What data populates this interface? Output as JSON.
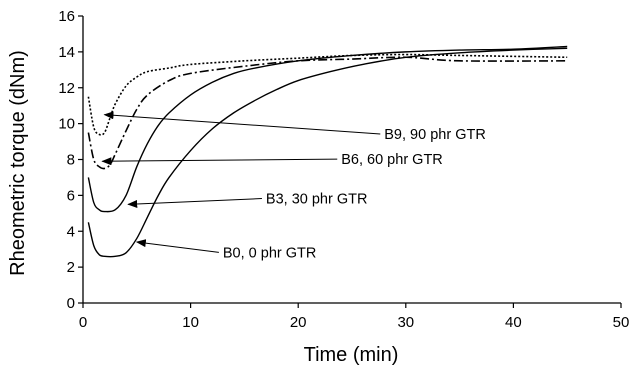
{
  "chart_data": {
    "type": "line",
    "title": "",
    "xlabel": "Time (min)",
    "ylabel": "Rheometric torque (dNm)",
    "xlim": [
      0,
      50
    ],
    "ylim": [
      0,
      16
    ],
    "xticks": [
      0,
      10,
      20,
      30,
      40,
      50
    ],
    "yticks": [
      0,
      2,
      4,
      6,
      8,
      10,
      12,
      14,
      16
    ],
    "grid": false,
    "legend": "none",
    "series": [
      {
        "name": "B0, 0 phr GTR",
        "style": "solid",
        "color": "#000000",
        "points": [
          [
            0.5,
            4.5
          ],
          [
            1.0,
            3.2
          ],
          [
            1.5,
            2.7
          ],
          [
            2.0,
            2.6
          ],
          [
            3.0,
            2.6
          ],
          [
            4.0,
            2.8
          ],
          [
            5.0,
            3.6
          ],
          [
            6.0,
            4.8
          ],
          [
            7.0,
            6.0
          ],
          [
            8.0,
            7.0
          ],
          [
            10.0,
            8.5
          ],
          [
            12.0,
            9.7
          ],
          [
            14.0,
            10.6
          ],
          [
            16.0,
            11.3
          ],
          [
            18.0,
            11.9
          ],
          [
            20.0,
            12.4
          ],
          [
            23.0,
            12.9
          ],
          [
            26.0,
            13.3
          ],
          [
            30.0,
            13.7
          ],
          [
            35.0,
            13.95
          ],
          [
            40.0,
            14.1
          ],
          [
            45.0,
            14.2
          ]
        ]
      },
      {
        "name": "B3, 30 phr GTR",
        "style": "solid",
        "color": "#000000",
        "points": [
          [
            0.5,
            7.0
          ],
          [
            1.0,
            5.6
          ],
          [
            1.5,
            5.2
          ],
          [
            2.0,
            5.1
          ],
          [
            3.0,
            5.2
          ],
          [
            4.0,
            6.0
          ],
          [
            5.0,
            7.6
          ],
          [
            6.0,
            8.9
          ],
          [
            7.0,
            9.9
          ],
          [
            8.0,
            10.6
          ],
          [
            10.0,
            11.6
          ],
          [
            12.0,
            12.3
          ],
          [
            14.0,
            12.8
          ],
          [
            16.0,
            13.1
          ],
          [
            20.0,
            13.5
          ],
          [
            25.0,
            13.8
          ],
          [
            30.0,
            14.0
          ],
          [
            35.0,
            14.1
          ],
          [
            40.0,
            14.15
          ],
          [
            45.0,
            14.3
          ]
        ]
      },
      {
        "name": "B6, 60 phr GTR",
        "style": "dash-dot",
        "color": "#000000",
        "points": [
          [
            0.5,
            9.5
          ],
          [
            1.0,
            8.0
          ],
          [
            1.5,
            7.6
          ],
          [
            2.0,
            7.5
          ],
          [
            2.5,
            7.7
          ],
          [
            3.0,
            8.3
          ],
          [
            4.0,
            9.6
          ],
          [
            5.0,
            10.8
          ],
          [
            6.0,
            11.6
          ],
          [
            8.0,
            12.4
          ],
          [
            10.0,
            12.8
          ],
          [
            15.0,
            13.2
          ],
          [
            20.0,
            13.5
          ],
          [
            25.0,
            13.6
          ],
          [
            30.0,
            13.7
          ],
          [
            35.0,
            13.5
          ],
          [
            45.0,
            13.5
          ]
        ]
      },
      {
        "name": "B9, 90 phr GTR",
        "style": "dotted",
        "color": "#000000",
        "points": [
          [
            0.5,
            11.5
          ],
          [
            1.0,
            9.8
          ],
          [
            1.5,
            9.4
          ],
          [
            2.0,
            9.5
          ],
          [
            2.5,
            10.3
          ],
          [
            3.0,
            11.1
          ],
          [
            4.0,
            12.1
          ],
          [
            5.0,
            12.6
          ],
          [
            6.0,
            12.9
          ],
          [
            8.0,
            13.1
          ],
          [
            10.0,
            13.3
          ],
          [
            15.0,
            13.5
          ],
          [
            20.0,
            13.65
          ],
          [
            25.0,
            13.8
          ],
          [
            30.0,
            13.85
          ],
          [
            35.0,
            13.8
          ],
          [
            45.0,
            13.7
          ]
        ]
      }
    ],
    "annotations": [
      {
        "text": "B9, 90 phr GTR",
        "arrow_to": [
          2.0,
          10.5
        ],
        "text_at": [
          28.0,
          9.2
        ]
      },
      {
        "text": "B6, 60 phr GTR",
        "arrow_to": [
          1.8,
          7.9
        ],
        "text_at": [
          24.0,
          7.8
        ]
      },
      {
        "text": "B3, 30 phr GTR",
        "arrow_to": [
          4.2,
          5.5
        ],
        "text_at": [
          17.0,
          5.6
        ]
      },
      {
        "text": "B0, 0 phr GTR",
        "arrow_to": [
          5.0,
          3.4
        ],
        "text_at": [
          13.0,
          2.6
        ]
      }
    ]
  }
}
